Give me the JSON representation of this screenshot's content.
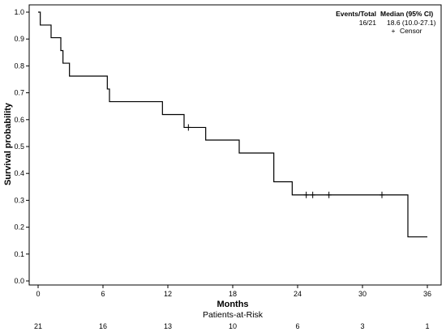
{
  "chart_data": {
    "type": "line",
    "subtype": "kaplan-meier-step",
    "xlabel": "Months",
    "ylabel": "Survival probability",
    "xlim": [
      0,
      36
    ],
    "ylim": [
      0,
      1
    ],
    "x_ticks": [
      "0",
      "6",
      "12",
      "18",
      "24",
      "30",
      "36"
    ],
    "x_tick_values": [
      0,
      6,
      12,
      18,
      24,
      30,
      36
    ],
    "y_ticks": [
      "0.0",
      "0.1",
      "0.2",
      "0.3",
      "0.4",
      "0.5",
      "0.6",
      "0.7",
      "0.8",
      "0.9",
      "1.0"
    ],
    "y_tick_values": [
      0,
      0.1,
      0.2,
      0.3,
      0.4,
      0.5,
      0.6,
      0.7,
      0.8,
      0.9,
      1.0
    ],
    "grid": false,
    "legend_position": "top-right",
    "legend": {
      "header_events": "Events/Total",
      "header_median": "Median (95% CI)",
      "events": "16/21",
      "median": "18.6 (10.0-27.1)",
      "censor_symbol": "+",
      "censor_label": "Censor"
    },
    "series": [
      {
        "steps": [
          [
            0,
            1.0
          ],
          [
            0.2,
            0.952
          ],
          [
            1.2,
            0.905
          ],
          [
            2.1,
            0.857
          ],
          [
            2.3,
            0.81
          ],
          [
            2.9,
            0.762
          ],
          [
            6.4,
            0.714
          ],
          [
            6.6,
            0.667
          ],
          [
            11.5,
            0.619
          ],
          [
            13.5,
            0.571
          ],
          [
            15.5,
            0.524
          ],
          [
            18.6,
            0.476
          ],
          [
            21.8,
            0.369
          ],
          [
            23.5,
            0.32
          ],
          [
            34.2,
            0.164
          ],
          [
            36.0,
            0.164
          ]
        ],
        "censors": [
          [
            13.9,
            0.571
          ],
          [
            24.8,
            0.32
          ],
          [
            25.4,
            0.32
          ],
          [
            26.9,
            0.32
          ],
          [
            31.8,
            0.32
          ]
        ]
      }
    ],
    "risk_table": {
      "title": "Patients-at-Risk",
      "times": [
        0,
        6,
        12,
        18,
        24,
        30,
        36
      ],
      "counts": [
        "21",
        "16",
        "13",
        "10",
        "6",
        "3",
        "1"
      ]
    }
  }
}
